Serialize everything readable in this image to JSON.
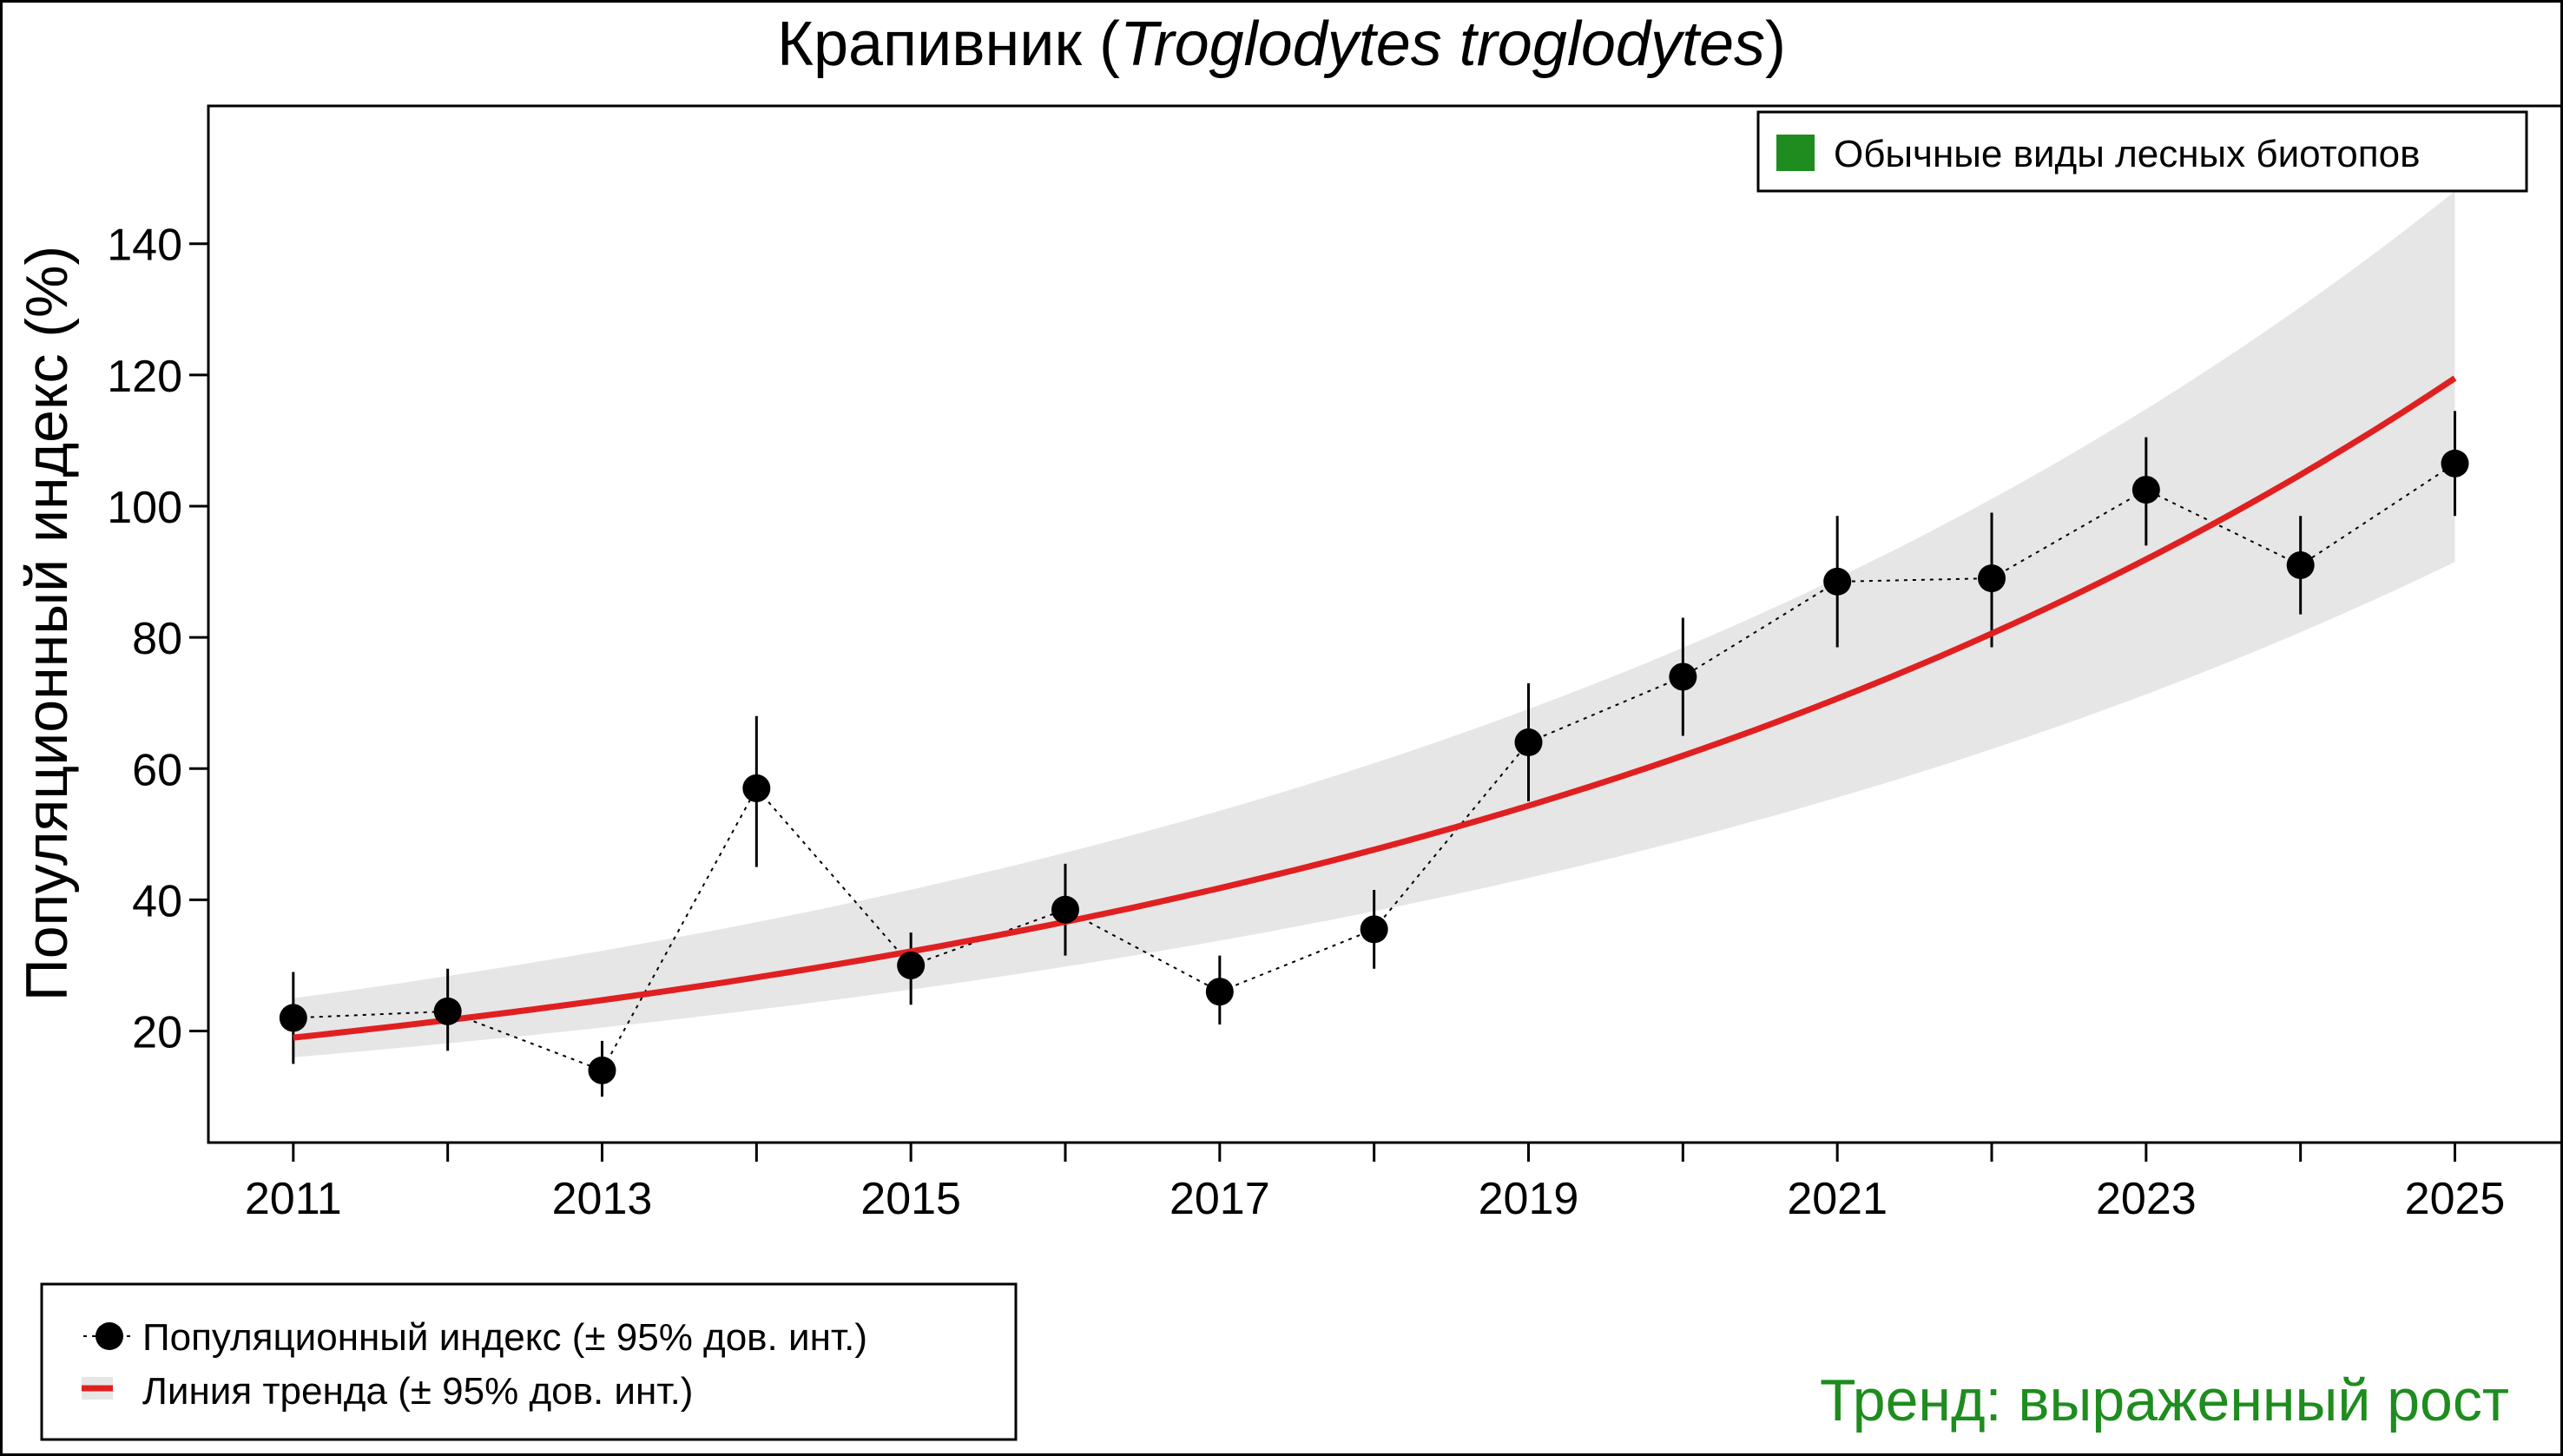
{
  "chart_data": {
    "type": "line",
    "title_main": "Крапивник (",
    "title_italic": "Troglodytes troglodytes",
    "title_end": ")",
    "ylabel": "Популяционный индекс (%)",
    "xlabel": "",
    "xlim": [
      2010.45,
      2025.7
    ],
    "ylim": [
      3,
      161
    ],
    "x_tick_values": [
      2011,
      2012,
      2013,
      2014,
      2015,
      2016,
      2017,
      2018,
      2019,
      2020,
      2021,
      2022,
      2023,
      2024,
      2025
    ],
    "x_tick_labels": [
      {
        "year": 2011,
        "label": "2011"
      },
      {
        "year": 2013,
        "label": "2013"
      },
      {
        "year": 2015,
        "label": "2015"
      },
      {
        "year": 2017,
        "label": "2017"
      },
      {
        "year": 2019,
        "label": "2019"
      },
      {
        "year": 2021,
        "label": "2021"
      },
      {
        "year": 2023,
        "label": "2023"
      },
      {
        "year": 2025,
        "label": "2025"
      }
    ],
    "y_ticks": [
      {
        "value": 20,
        "label": "20"
      },
      {
        "value": 40,
        "label": "40"
      },
      {
        "value": 60,
        "label": "60"
      },
      {
        "value": 80,
        "label": "80"
      },
      {
        "value": 100,
        "label": "100"
      },
      {
        "value": 120,
        "label": "120"
      },
      {
        "value": 140,
        "label": "140"
      }
    ],
    "index_series": {
      "name": "Популяционный индекс (± 95% дов. инт.)",
      "x": [
        2011,
        2012,
        2013,
        2014,
        2015,
        2016,
        2017,
        2018,
        2019,
        2020,
        2021,
        2022,
        2023,
        2024,
        2025
      ],
      "values": [
        22,
        23,
        14,
        57,
        30,
        38.5,
        26,
        35.5,
        64,
        74,
        88.5,
        89,
        102.5,
        91,
        106.5
      ],
      "lower": [
        15,
        17,
        10,
        45,
        24,
        31.5,
        21,
        29.5,
        55,
        65,
        78.5,
        78.5,
        94,
        83.5,
        98.5
      ],
      "upper": [
        29,
        29.5,
        18.5,
        68,
        35,
        45.5,
        31.5,
        41.5,
        73,
        83,
        98.5,
        99,
        110.5,
        98.5,
        114.5
      ]
    },
    "trend_series": {
      "name": "Линия тренда (± 95% дов. инт.)",
      "start_value": 19,
      "end_value": 119.5,
      "ci_lower": [
        {
          "x": 2011,
          "y": 16
        },
        {
          "x": 2025,
          "y": 91.5
        }
      ],
      "ci_upper": [
        {
          "x": 2011,
          "y": 25
        },
        {
          "x": 2025,
          "y": 148
        }
      ]
    },
    "category_legend": {
      "label": "Обычные виды лесных биотопов",
      "color": "#1e8c1e"
    },
    "trend_label": "Тренд: выраженный рост",
    "colors": {
      "trend_line": "#e02020",
      "ci_band": "#e6e6e6",
      "points": "#000000",
      "category": "#1e8c1e",
      "trend_text": "#1e8c1e"
    }
  }
}
